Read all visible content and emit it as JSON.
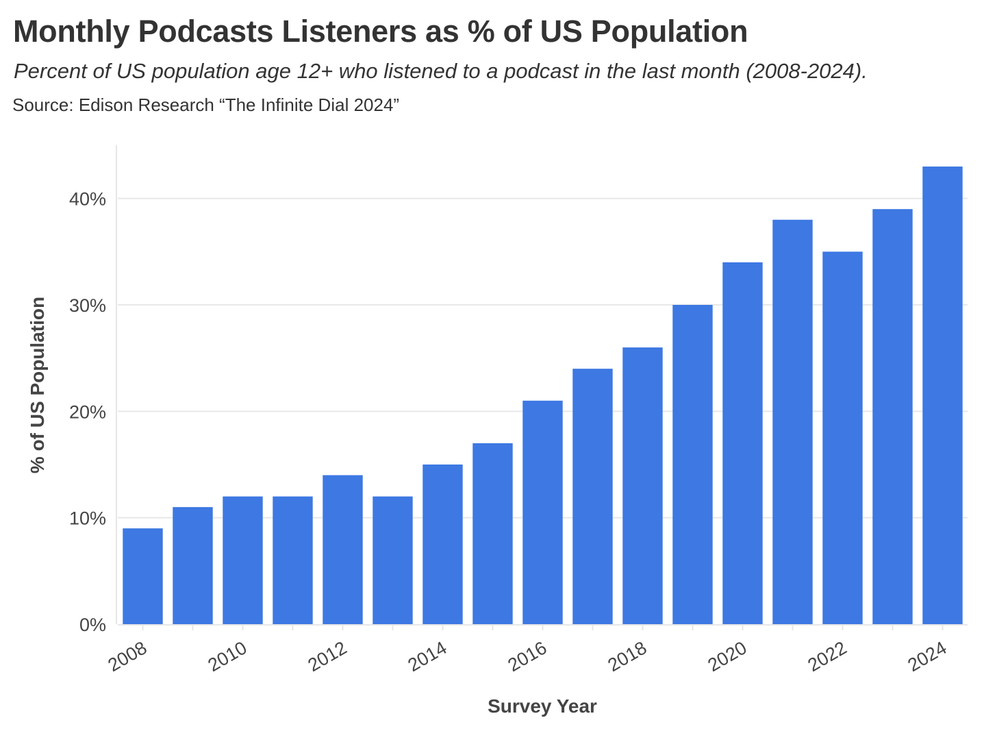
{
  "chart_data": {
    "type": "bar",
    "title": "Monthly Podcasts Listeners as % of US Population",
    "subtitle": "Percent of US population age 12+ who listened to a podcast in the last month (2008-2024).",
    "source": "Source: Edison Research “The Infinite Dial 2024”",
    "xlabel": "Survey Year",
    "ylabel": "% of US Population",
    "categories": [
      2008,
      2009,
      2010,
      2011,
      2012,
      2013,
      2014,
      2015,
      2016,
      2017,
      2018,
      2019,
      2020,
      2021,
      2022,
      2023,
      2024
    ],
    "values": [
      9,
      11,
      12,
      12,
      14,
      12,
      15,
      17,
      21,
      24,
      26,
      30,
      34,
      38,
      35,
      39,
      43
    ],
    "x_tick_labels": [
      "2008",
      "2010",
      "2012",
      "2014",
      "2016",
      "2018",
      "2020",
      "2022",
      "2024"
    ],
    "y_tick_labels": [
      "0%",
      "10%",
      "20%",
      "30%",
      "40%"
    ],
    "y_ticks": [
      0,
      10,
      20,
      30,
      40
    ],
    "ylim": [
      0,
      45
    ],
    "grid": true,
    "bar_color": "#3d78e3"
  }
}
